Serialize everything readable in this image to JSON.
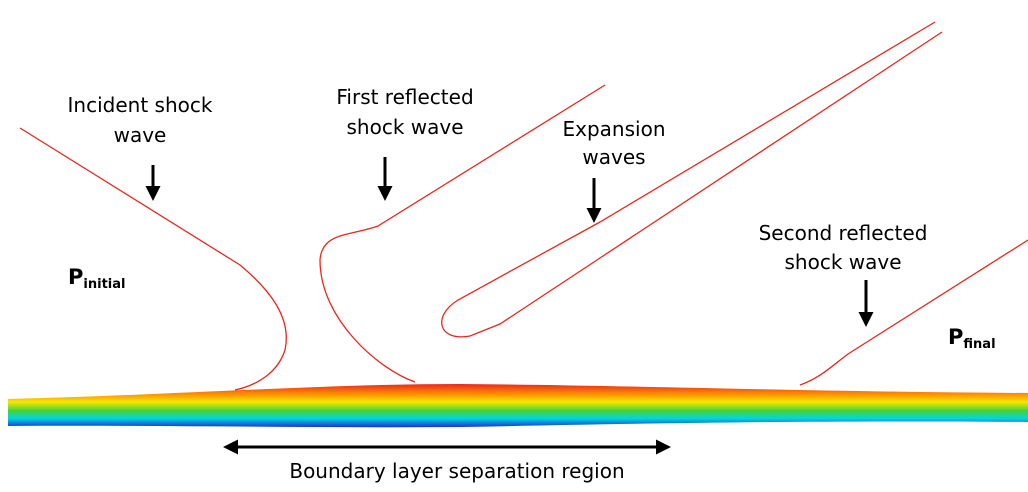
{
  "labels": {
    "incident": [
      "Incident shock",
      "wave"
    ],
    "first_reflected": [
      "First reflected",
      "shock wave"
    ],
    "expansion": [
      "Expansion",
      "waves"
    ],
    "second_reflected": [
      "Second reflected",
      "shock wave"
    ],
    "p_initial": {
      "symbol": "P",
      "subscript": "initial"
    },
    "p_final": {
      "symbol": "P",
      "subscript": "final"
    },
    "separation": "Boundary layer separation region"
  }
}
